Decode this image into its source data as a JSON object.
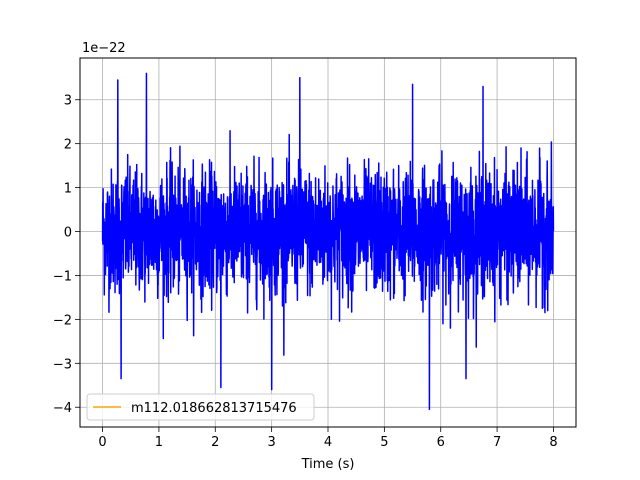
{
  "chart_data": {
    "type": "line",
    "title": "",
    "xlabel": "Time (s)",
    "ylabel": "",
    "y_offset_label": "1e−22",
    "xlim": [
      -0.4,
      8.4
    ],
    "ylim": [
      -4.45,
      3.95
    ],
    "xticks": [
      0,
      1,
      2,
      3,
      4,
      5,
      6,
      7,
      8
    ],
    "xtick_labels": [
      "0",
      "1",
      "2",
      "3",
      "4",
      "5",
      "6",
      "7",
      "8"
    ],
    "yticks": [
      -4,
      -3,
      -2,
      -1,
      0,
      1,
      2,
      3
    ],
    "ytick_labels": [
      "−4",
      "−3",
      "−2",
      "−1",
      "0",
      "1",
      "2",
      "3"
    ],
    "grid": true,
    "legend_position": "lower-left",
    "series": [
      {
        "name": "",
        "color": "#0000ff",
        "x_range": [
          0,
          8
        ],
        "noise_scale": 0.7,
        "peaks": [
          {
            "x": 0.27,
            "y": 3.45
          },
          {
            "x": 0.78,
            "y": 3.6
          },
          {
            "x": 3.5,
            "y": 3.5
          },
          {
            "x": 5.5,
            "y": 3.35
          },
          {
            "x": 6.75,
            "y": 3.3
          },
          {
            "x": 0.33,
            "y": -3.35
          },
          {
            "x": 2.1,
            "y": -3.55
          },
          {
            "x": 3.0,
            "y": -3.6
          },
          {
            "x": 5.8,
            "y": -4.05
          },
          {
            "x": 6.45,
            "y": -3.35
          }
        ]
      },
      {
        "name": "m112.018662813715476",
        "color": "#ffa500",
        "note_hidden_behind": true
      }
    ]
  }
}
